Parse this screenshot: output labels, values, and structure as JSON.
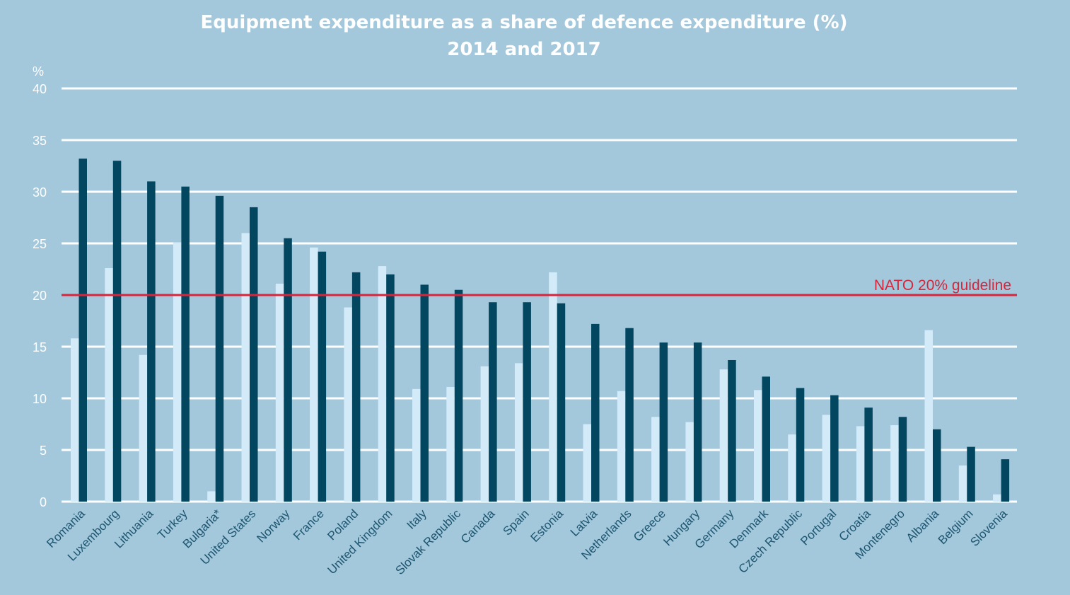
{
  "chart_data": {
    "type": "bar",
    "title": "Equipment expenditure as a share of defence expenditure (%)",
    "subtitle": "2014 and 2017",
    "xlabel": "",
    "ylabel": "%",
    "ylim": [
      0,
      40
    ],
    "yticks": [
      0,
      5,
      10,
      15,
      20,
      25,
      30,
      35,
      40
    ],
    "grid": true,
    "legend": "none",
    "categories": [
      "Romania",
      "Luxembourg",
      "Lithuania",
      "Turkey",
      "Bulgaria*",
      "United States",
      "Norway",
      "France",
      "Poland",
      "United Kingdom",
      "Italy",
      "Slovak Republic",
      "Canada",
      "Spain",
      "Estonia",
      "Latvia",
      "Netherlands",
      "Greece",
      "Hungary",
      "Germany",
      "Denmark",
      "Czech Republic",
      "Portugal",
      "Croatia",
      "Montenegro",
      "Albania",
      "Belgium",
      "Slovenia"
    ],
    "series": [
      {
        "name": "2014",
        "color": "#d3ebf8",
        "values": [
          15.8,
          22.6,
          14.2,
          25.1,
          1.0,
          26.0,
          21.1,
          24.6,
          18.8,
          22.8,
          10.9,
          11.1,
          13.1,
          13.4,
          22.2,
          7.5,
          10.7,
          8.2,
          7.7,
          12.8,
          10.8,
          6.5,
          8.4,
          7.3,
          7.4,
          16.6,
          3.5,
          0.7
        ]
      },
      {
        "name": "2017",
        "color": "#03465f",
        "values": [
          33.2,
          33.0,
          31.0,
          30.5,
          29.6,
          28.5,
          25.5,
          24.2,
          22.2,
          22.0,
          21.0,
          20.5,
          19.3,
          19.3,
          19.2,
          17.2,
          16.8,
          15.4,
          15.4,
          13.7,
          12.1,
          11.0,
          10.3,
          9.1,
          8.2,
          7.0,
          5.3,
          4.1
        ]
      }
    ],
    "annotations": [
      {
        "type": "hline",
        "value": 20,
        "label": "NATO 20% guideline",
        "color": "#d7263b"
      }
    ]
  },
  "colors": {
    "background": "#a3c7db",
    "grid": "#ffffff",
    "tick_text": "#ffffff",
    "category_text": "#1c5570"
  }
}
